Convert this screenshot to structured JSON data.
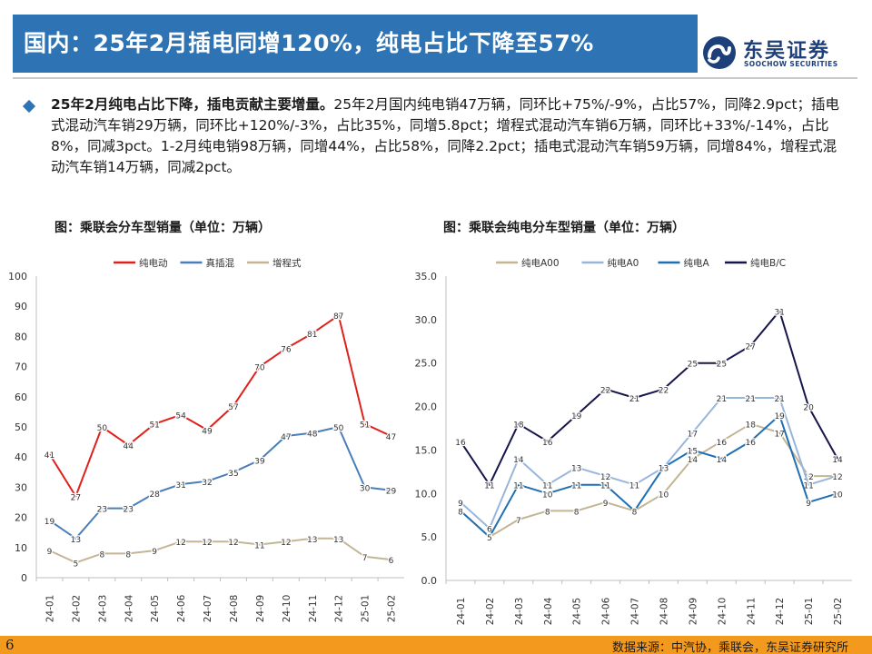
{
  "header": {
    "title": "国内：25年2月插电同增120%，纯电占比下降至57%",
    "brand_name": "东吴证券",
    "brand_en": "SOOCHOW SECURITIES",
    "accent_color": "#2e74b5"
  },
  "body": {
    "lead": "25年2月纯电占比下降，插电贡献主要增量。",
    "text": "25年2月国内纯电销47万辆，同环比+75%/-9%，占比57%，同降2.9pct；插电式混动汽车销29万辆，同环比+120%/-3%，占比35%，同增5.8pct；增程式混动汽车销6万辆，同环比+33%/-14%，占比8%，同减3pct。1-2月纯电销98万辆，同增44%，占比58%，同降2.2pct；插电式混动汽车销59万辆，同增84%，增程式混动汽车销14万辆，同减2pct。"
  },
  "footer": {
    "page_number": "6",
    "source": "数据来源：中汽协，乘联会，东吴证券研究所",
    "bar_color": "#f39a1e"
  },
  "chart_data": [
    {
      "type": "line",
      "title": "图：乘联会分车型销量（单位：万辆）",
      "categories": [
        "24-01",
        "24-02",
        "24-03",
        "24-04",
        "24-05",
        "24-06",
        "24-07",
        "24-08",
        "24-09",
        "24-10",
        "24-11",
        "24-12",
        "25-01",
        "25-02"
      ],
      "ylim": [
        0,
        100
      ],
      "yticks": [
        0,
        10,
        20,
        30,
        40,
        50,
        60,
        70,
        80,
        90,
        100
      ],
      "ytick_labels": [
        "0",
        "10",
        "20",
        "30",
        "40",
        "50",
        "60",
        "70",
        "80",
        "90",
        "100"
      ],
      "legend_position": "top",
      "grid": false,
      "series": [
        {
          "name": "纯电动",
          "color": "#e0201b",
          "values": [
            41,
            27,
            50,
            44,
            51,
            54,
            49,
            57,
            70,
            76,
            81,
            87,
            51,
            47
          ],
          "labels": [
            "41",
            "27",
            "50",
            "44",
            "51",
            "54",
            "49",
            "57",
            "70",
            "76",
            "81",
            "87",
            "51",
            "47"
          ]
        },
        {
          "name": "真插混",
          "color": "#4a7ebb",
          "values": [
            19,
            13,
            23,
            23,
            28,
            31,
            32,
            35,
            39,
            47,
            48,
            50,
            30,
            29
          ],
          "labels": [
            "19",
            "13",
            "23",
            "23",
            "28",
            "31",
            "32",
            "35",
            "39",
            "47",
            "48",
            "50",
            "30",
            "29"
          ]
        },
        {
          "name": "增程式",
          "color": "#c4b594",
          "values": [
            9,
            5,
            8,
            8,
            9,
            12,
            12,
            12,
            11,
            12,
            13,
            13,
            7,
            6
          ],
          "labels": [
            "9",
            "5",
            "8",
            "8",
            "9",
            "12",
            "12",
            "12",
            "11",
            "12",
            "13",
            "13",
            "7",
            "6"
          ]
        }
      ]
    },
    {
      "type": "line",
      "title": "图：乘联会纯电分车型销量（单位：万辆）",
      "categories": [
        "24-01",
        "24-02",
        "24-03",
        "24-04",
        "24-05",
        "24-06",
        "24-07",
        "24-08",
        "24-09",
        "24-10",
        "24-11",
        "24-12",
        "25-01",
        "25-02"
      ],
      "ylim": [
        0,
        35
      ],
      "yticks": [
        0,
        5,
        10,
        15,
        20,
        25,
        30,
        35
      ],
      "ytick_labels": [
        "0.0",
        "5.0",
        "10.0",
        "15.0",
        "20.0",
        "25.0",
        "30.0",
        "35.0"
      ],
      "legend_position": "top",
      "grid": false,
      "series": [
        {
          "name": "纯电A00",
          "color": "#c4b594",
          "values": [
            8,
            5,
            7,
            8,
            8,
            9,
            8,
            10,
            14,
            16,
            18,
            17,
            12,
            12
          ],
          "labels": [
            "8",
            "5",
            "7",
            "8",
            "8",
            "9",
            "8",
            "10",
            "14",
            "16",
            "18",
            "17",
            "12",
            "12"
          ]
        },
        {
          "name": "纯电A0",
          "color": "#98b6db",
          "values": [
            9,
            6,
            14,
            11,
            13,
            12,
            11,
            13,
            17,
            21,
            21,
            21,
            11,
            12
          ],
          "labels": [
            "9",
            "6",
            "14",
            "11",
            "13",
            "12",
            "11",
            "13",
            "17",
            "21",
            "21",
            "21",
            "11",
            "12"
          ]
        },
        {
          "name": "纯电A",
          "color": "#1f6fb5",
          "values": [
            8,
            5,
            11,
            10,
            11,
            11,
            8,
            13,
            15,
            14,
            16,
            19,
            9,
            10
          ],
          "labels": [
            "8",
            "5",
            "11",
            "10",
            "11",
            "11",
            "8",
            "13",
            "15",
            "14",
            "16",
            "19",
            "9",
            "10"
          ]
        },
        {
          "name": "纯电B/C",
          "color": "#16164a",
          "values": [
            16,
            11,
            18,
            16,
            19,
            22,
            21,
            22,
            25,
            25,
            27,
            31,
            20,
            14
          ],
          "labels": [
            "16",
            "11",
            "18",
            "16",
            "19",
            "22",
            "21",
            "22",
            "25",
            "25",
            "27",
            "31",
            "20",
            "14"
          ]
        }
      ]
    }
  ]
}
